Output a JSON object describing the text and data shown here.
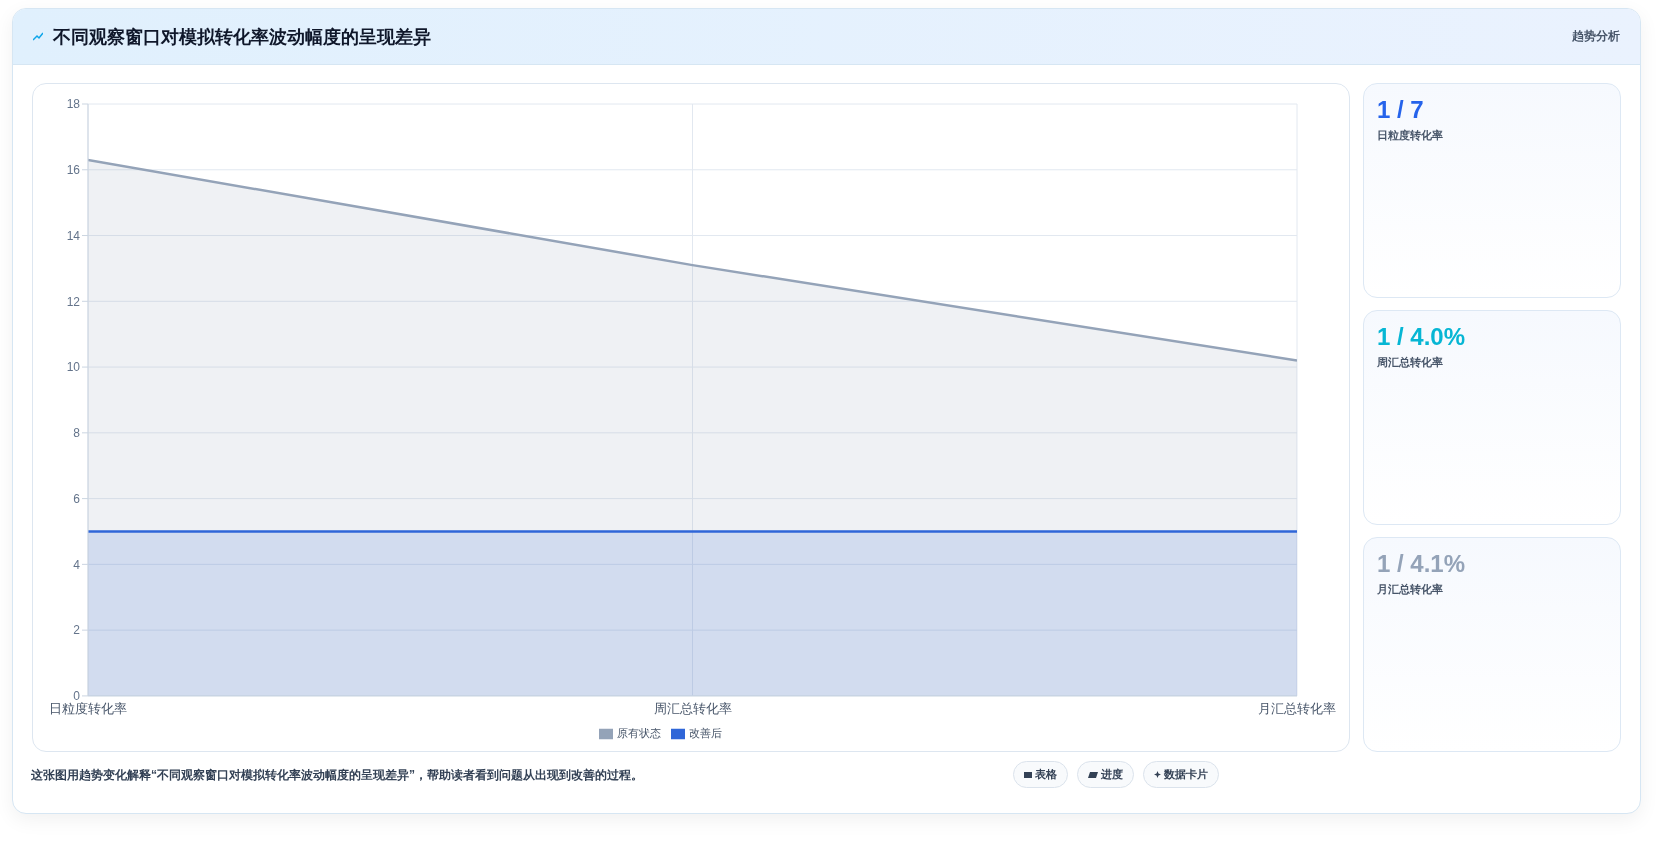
{
  "chart_data": {
    "type": "area",
    "title": "不同观察窗口对模拟转化率波动幅度的呈现差异",
    "categories": [
      "日粒度转化率",
      "周汇总转化率",
      "月汇总转化率"
    ],
    "series": [
      {
        "name": "原有状态",
        "color": "#94a3b8",
        "values": [
          16.3,
          13.1,
          10.2
        ]
      },
      {
        "name": "改善后",
        "color": "#2f66d8",
        "values": [
          5.0,
          5.0,
          5.0
        ]
      }
    ],
    "ylim": [
      0,
      18
    ],
    "yticks": [
      0,
      2,
      4,
      6,
      8,
      10,
      12,
      14,
      16,
      18
    ],
    "grid": true,
    "legend": "bottom",
    "marker": "none",
    "line_style": "solid",
    "annotations": [
      "趋势分析",
      "1 / 7",
      "日粒度转化率",
      "1 / 4.0%",
      "周汇总转化率",
      "1 / 4.1%",
      "月汇总转化率",
      "这张图用趋势变化解释“不同观察窗口对模拟转化率波动幅度的呈现差异”，帮助读者看到问题从出现到改善的过程。",
      "表格",
      "进度",
      "数据卡片"
    ]
  }
}
